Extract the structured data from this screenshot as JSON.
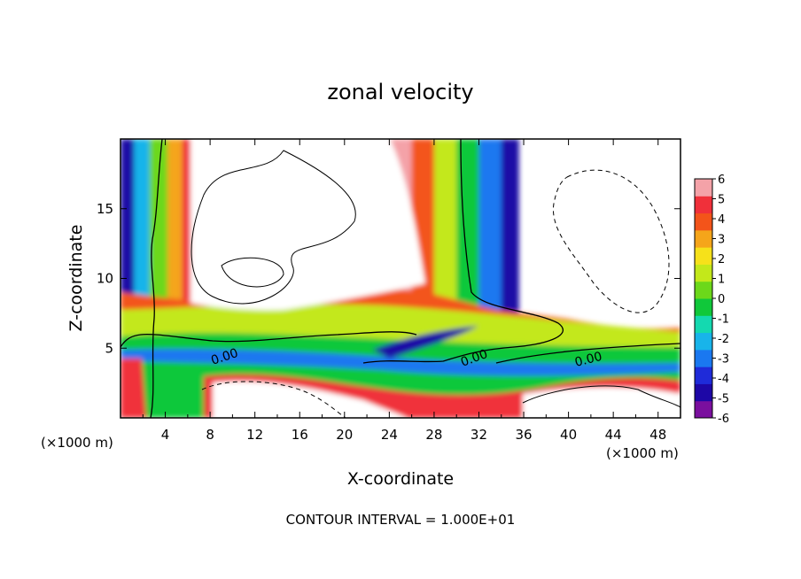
{
  "chart_data": {
    "type": "heatmap",
    "title": "zonal velocity",
    "xlabel": "X-coordinate",
    "ylabel": "Z-coordinate",
    "x_unit": "(×1000 m)",
    "z_unit": "(×1000 m)",
    "xlim": [
      0,
      50
    ],
    "ylim": [
      0,
      20
    ],
    "x_ticks": [
      4,
      8,
      12,
      16,
      20,
      24,
      28,
      32,
      36,
      40,
      44,
      48
    ],
    "y_ticks": [
      5,
      10,
      15
    ],
    "colorbar": {
      "min": -6,
      "max": 6,
      "ticks": [
        6,
        5,
        4,
        3,
        2,
        1,
        0,
        -1,
        -2,
        -3,
        -4,
        -5,
        -6
      ],
      "colors": [
        "#7a0f9e",
        "#1d07a6",
        "#1f2bd9",
        "#1a78f0",
        "#18b4ea",
        "#14d9b0",
        "#10c83a",
        "#6cd81a",
        "#c3e81a",
        "#f6e11a",
        "#f5a51a",
        "#f3541a",
        "#f0303a",
        "#f4a2a8"
      ]
    },
    "contour_label": "0.00",
    "footnote": "CONTOUR INTERVAL = 1.000E+01",
    "bands": [
      {
        "x": [
          0.0,
          1.2
        ],
        "value": -4.5
      },
      {
        "x": [
          1.2,
          2.6
        ],
        "value": -2.5
      },
      {
        "x": [
          2.6,
          4.2
        ],
        "value": 0.3
      },
      {
        "x": [
          4.2,
          5.5
        ],
        "value": 2.6
      },
      {
        "x": [
          5.5,
          6.3
        ],
        "value": 4.5
      },
      {
        "x": [
          24.0,
          26.0
        ],
        "value": 5.5
      },
      {
        "x": [
          26.0,
          28.0
        ],
        "value": 3.5
      },
      {
        "x": [
          28.0,
          30.0
        ],
        "value": 1.5
      },
      {
        "x": [
          30.0,
          32.0
        ],
        "value": -0.5
      },
      {
        "x": [
          32.0,
          34.0
        ],
        "value": -3.0
      },
      {
        "x": [
          34.0,
          35.5
        ],
        "value": -5.0
      }
    ]
  }
}
